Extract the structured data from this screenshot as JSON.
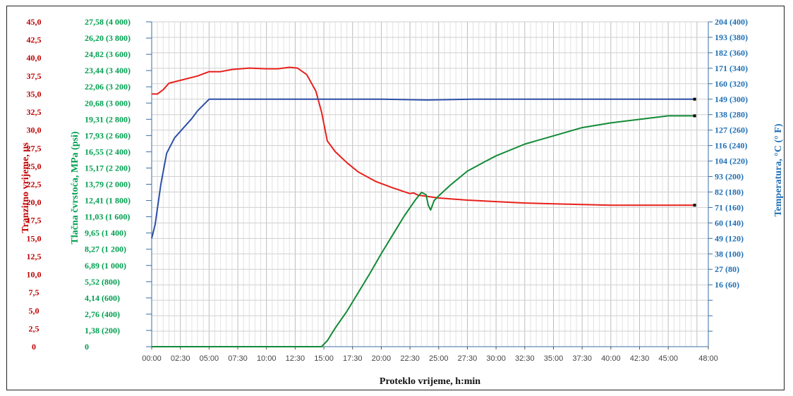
{
  "chart_data": {
    "type": "line",
    "xlabel": "Proteklo vrijeme, h:min",
    "x_ticks": [
      "00:00",
      "02:30",
      "05:00",
      "07:30",
      "10:00",
      "12:30",
      "15:00",
      "17:30",
      "20:00",
      "22:30",
      "25:00",
      "27:30",
      "30:00",
      "32:30",
      "35:00",
      "37:30",
      "40:00",
      "42:30",
      "45:00",
      "48:00"
    ],
    "xlim": [
      0,
      48
    ],
    "axes": {
      "left_outer": {
        "label": "Tranzitno vrijeme, µs",
        "ticks": [
          "0",
          "2,5",
          "5,0",
          "7,5",
          "10,0",
          "12,5",
          "15,0",
          "17,5",
          "20,0",
          "22,5",
          "25,0",
          "27,5",
          "30,0",
          "32,5",
          "35,0",
          "37,5",
          "40,0",
          "42,5",
          "45,0"
        ],
        "ylim": [
          0,
          45
        ]
      },
      "left_inner": {
        "label": "Tlačna čvrstoća, MPa (psi)",
        "ticks": [
          "0",
          "1,38 (200)",
          "2,76 (400)",
          "4,14 (600)",
          "5,52 (800)",
          "6,89 (1 000)",
          "8,27 (1 200)",
          "9,65 (1 400)",
          "11,03 (1 600)",
          "12,41 (1 800)",
          "13,79 (2 000)",
          "15,17 (2 200)",
          "16,55 (2 400)",
          "17,93 (2 600)",
          "19,31 (2 800)",
          "20,68 (3 000)",
          "22,06 (3 200)",
          "23,44 (3 400)",
          "24,82 (3 600)",
          "26,20 (3 800)",
          "27,58 (4 000)"
        ],
        "ylim": [
          0,
          27.58
        ]
      },
      "right": {
        "label": "Temperatura, °C (° F)",
        "ticks": [
          "16 (60)",
          "27 (80)",
          "38 (100)",
          "49 (120)",
          "60 (140)",
          "71 (160)",
          "82 (180)",
          "93 (200)",
          "104 (220)",
          "116 (240)",
          "127 (260)",
          "138 (280)",
          "149 (300)",
          "160 (320)",
          "171 (340)",
          "182 (360)",
          "193 (380)",
          "204 (400)"
        ],
        "tick_values_F": [
          60,
          80,
          100,
          120,
          140,
          160,
          180,
          200,
          220,
          240,
          260,
          280,
          300,
          320,
          340,
          360,
          380,
          400
        ],
        "ylim_F": [
          -20,
          400
        ]
      }
    },
    "series": [
      {
        "axis": "left_outer",
        "color": "#e8201c",
        "points": [
          [
            0,
            35.0
          ],
          [
            0.5,
            35.0
          ],
          [
            1,
            35.6
          ],
          [
            1.5,
            36.5
          ],
          [
            2.5,
            36.9
          ],
          [
            4,
            37.5
          ],
          [
            5,
            38.1
          ],
          [
            6,
            38.1
          ],
          [
            7,
            38.4
          ],
          [
            8.5,
            38.6
          ],
          [
            10,
            38.5
          ],
          [
            11,
            38.5
          ],
          [
            12,
            38.7
          ],
          [
            12.7,
            38.6
          ],
          [
            13.5,
            37.7
          ],
          [
            14.3,
            35.4
          ],
          [
            14.8,
            32.5
          ],
          [
            15.3,
            28.5
          ],
          [
            16,
            27.0
          ],
          [
            17,
            25.5
          ],
          [
            18,
            24.2
          ],
          [
            19.5,
            22.9
          ],
          [
            21,
            22.0
          ],
          [
            22.5,
            21.2
          ],
          [
            22.8,
            21.3
          ],
          [
            23.2,
            21.0
          ],
          [
            25,
            20.6
          ],
          [
            27.5,
            20.3
          ],
          [
            30,
            20.1
          ],
          [
            32.5,
            19.9
          ],
          [
            35,
            19.8
          ],
          [
            37.5,
            19.7
          ],
          [
            40,
            19.6
          ],
          [
            42.5,
            19.6
          ],
          [
            45,
            19.6
          ],
          [
            47.3,
            19.6
          ]
        ]
      },
      {
        "axis": "left_inner",
        "color": "#138a36",
        "points": [
          [
            0,
            0
          ],
          [
            14.8,
            0
          ],
          [
            15.3,
            0.5
          ],
          [
            16,
            1.6
          ],
          [
            17,
            3.0
          ],
          [
            18,
            4.6
          ],
          [
            19,
            6.2
          ],
          [
            20,
            7.9
          ],
          [
            21,
            9.5
          ],
          [
            22,
            11.1
          ],
          [
            23,
            12.5
          ],
          [
            23.5,
            13.1
          ],
          [
            23.9,
            12.9
          ],
          [
            24.1,
            12.0
          ],
          [
            24.3,
            11.6
          ],
          [
            24.6,
            12.4
          ],
          [
            25,
            12.8
          ],
          [
            26,
            13.7
          ],
          [
            27.5,
            14.9
          ],
          [
            29,
            15.7
          ],
          [
            30,
            16.2
          ],
          [
            32.5,
            17.2
          ],
          [
            35,
            17.9
          ],
          [
            37.5,
            18.6
          ],
          [
            40,
            19.0
          ],
          [
            42.5,
            19.3
          ],
          [
            45,
            19.6
          ],
          [
            47.3,
            19.6
          ]
        ]
      },
      {
        "axis": "right",
        "color": "#2c4ea8",
        "points": [
          [
            0,
            120
          ],
          [
            0.3,
            138
          ],
          [
            0.8,
            190
          ],
          [
            1.3,
            230
          ],
          [
            2,
            250
          ],
          [
            3.5,
            275
          ],
          [
            4,
            285
          ],
          [
            5,
            300
          ],
          [
            8,
            300
          ],
          [
            12,
            300
          ],
          [
            16,
            300
          ],
          [
            20,
            300
          ],
          [
            24,
            299
          ],
          [
            28,
            300
          ],
          [
            32,
            300
          ],
          [
            36,
            300
          ],
          [
            40,
            300
          ],
          [
            44,
            300
          ],
          [
            47.3,
            300
          ]
        ]
      }
    ]
  }
}
